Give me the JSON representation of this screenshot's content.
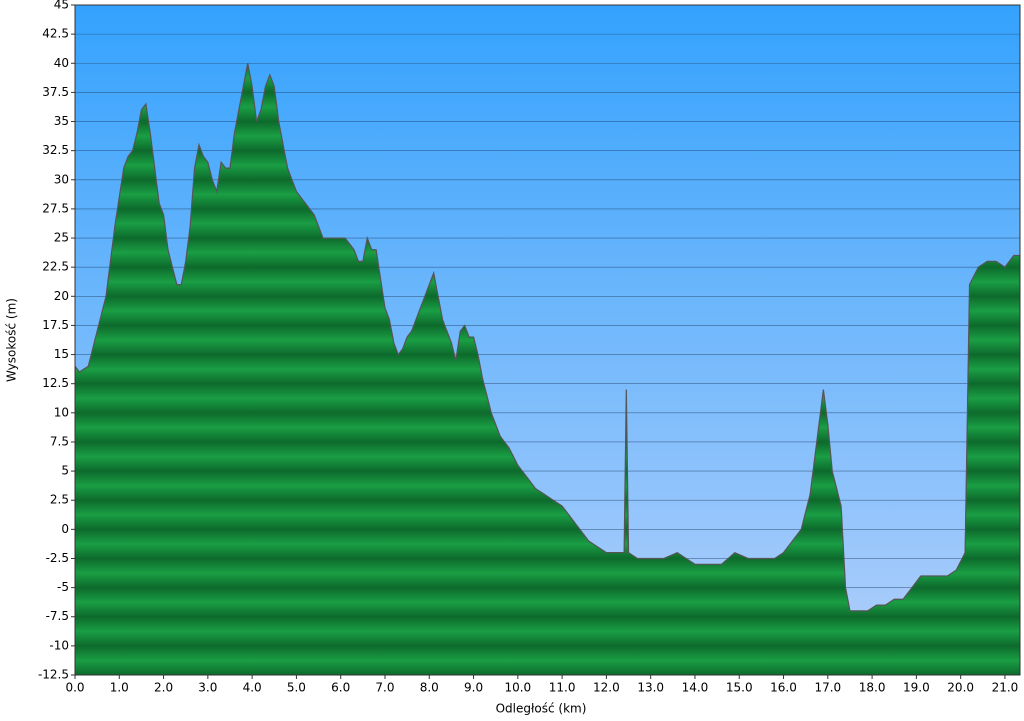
{
  "chart_data": {
    "type": "area",
    "x_label": "Odległość   (km)",
    "y_label": "Wysokość (m)",
    "x": [
      0,
      0.1,
      0.3,
      0.5,
      0.7,
      0.9,
      1.0,
      1.1,
      1.2,
      1.3,
      1.4,
      1.5,
      1.6,
      1.7,
      1.8,
      1.9,
      2.0,
      2.1,
      2.2,
      2.3,
      2.4,
      2.5,
      2.6,
      2.7,
      2.8,
      2.9,
      3.0,
      3.1,
      3.2,
      3.3,
      3.4,
      3.5,
      3.6,
      3.7,
      3.8,
      3.9,
      4.0,
      4.1,
      4.2,
      4.3,
      4.4,
      4.5,
      4.6,
      4.7,
      4.8,
      4.9,
      5.0,
      5.2,
      5.4,
      5.6,
      5.8,
      6.0,
      6.1,
      6.2,
      6.3,
      6.4,
      6.5,
      6.6,
      6.7,
      6.8,
      6.9,
      7.0,
      7.1,
      7.2,
      7.3,
      7.4,
      7.5,
      7.6,
      7.7,
      7.8,
      7.9,
      8.0,
      8.1,
      8.2,
      8.3,
      8.4,
      8.5,
      8.6,
      8.7,
      8.8,
      8.9,
      9.0,
      9.1,
      9.2,
      9.4,
      9.6,
      9.8,
      10.0,
      10.2,
      10.4,
      10.6,
      10.8,
      11.0,
      11.2,
      11.4,
      11.6,
      11.8,
      12.0,
      12.2,
      12.4,
      12.45,
      12.5,
      12.7,
      13.0,
      13.3,
      13.6,
      13.8,
      14.0,
      14.3,
      14.6,
      14.9,
      15.2,
      15.5,
      15.8,
      16.0,
      16.2,
      16.4,
      16.6,
      16.8,
      16.9,
      17.0,
      17.1,
      17.2,
      17.3,
      17.4,
      17.5,
      17.7,
      17.9,
      18.1,
      18.3,
      18.5,
      18.7,
      18.9,
      19.1,
      19.3,
      19.5,
      19.7,
      19.9,
      20.1,
      20.2,
      20.4,
      20.6,
      20.8,
      21.0,
      21.2,
      21.34
    ],
    "values": [
      14,
      13.5,
      14,
      17,
      20,
      26,
      28.5,
      31,
      32,
      32.5,
      34,
      36,
      36.5,
      34,
      31,
      28,
      27,
      24,
      22.5,
      21,
      21,
      23,
      26,
      31,
      33,
      32,
      31.5,
      30,
      29,
      31.5,
      31,
      31,
      34,
      36,
      38,
      40,
      38,
      35,
      36,
      38,
      39,
      38,
      35,
      33,
      31,
      30,
      29,
      28,
      27,
      25,
      25,
      25,
      25,
      24.5,
      24,
      23,
      23,
      25,
      24,
      24,
      21.5,
      19,
      18,
      16,
      15,
      15.5,
      16.5,
      17,
      18,
      19,
      20,
      21,
      22,
      20,
      18,
      17,
      16,
      14.5,
      17,
      17.5,
      16.5,
      16.5,
      15,
      13,
      10,
      8,
      7,
      5.5,
      4.5,
      3.5,
      3,
      2.5,
      2,
      1,
      0,
      -1,
      -1.5,
      -2,
      -2,
      -2,
      12,
      -2,
      -2.5,
      -2.5,
      -2.5,
      -2,
      -2.5,
      -3,
      -3,
      -3,
      -2,
      -2.5,
      -2.5,
      -2.5,
      -2,
      -1,
      0,
      3,
      9,
      12,
      9,
      5,
      3.5,
      2,
      -5,
      -7,
      -7,
      -7,
      -6.5,
      -6.5,
      -6,
      -6,
      -5,
      -4,
      -4,
      -4,
      -4,
      -3.5,
      -2,
      21,
      22.5,
      23,
      23,
      22.5,
      23.5,
      23.5
    ],
    "color": "#1a9e44",
    "xlim": [
      0,
      21.34
    ],
    "ylim": [
      -12.5,
      45
    ],
    "xticks": [
      {
        "value": 0,
        "label": "0.0"
      },
      {
        "value": 1,
        "label": "1.0"
      },
      {
        "value": 2,
        "label": "2.0"
      },
      {
        "value": 3,
        "label": "3.0"
      },
      {
        "value": 4,
        "label": "4.0"
      },
      {
        "value": 5,
        "label": "5.0"
      },
      {
        "value": 6,
        "label": "6.0"
      },
      {
        "value": 7,
        "label": "7.0"
      },
      {
        "value": 8,
        "label": "8.0"
      },
      {
        "value": 9,
        "label": "9.0"
      },
      {
        "value": 10,
        "label": "10.0"
      },
      {
        "value": 11,
        "label": "11.0"
      },
      {
        "value": 12,
        "label": "12.0"
      },
      {
        "value": 13,
        "label": "13.0"
      },
      {
        "value": 14,
        "label": "14.0"
      },
      {
        "value": 15,
        "label": "15.0"
      },
      {
        "value": 16,
        "label": "16.0"
      },
      {
        "value": 17,
        "label": "17.0"
      },
      {
        "value": 18,
        "label": "18.0"
      },
      {
        "value": 19,
        "label": "19.0"
      },
      {
        "value": 20,
        "label": "20.0"
      },
      {
        "value": 21,
        "label": "21.0"
      }
    ],
    "yticks": [
      -12.5,
      -10,
      -7.5,
      -5,
      -2.5,
      0,
      2.5,
      5,
      7.5,
      10,
      12.5,
      15,
      17.5,
      20,
      22.5,
      25,
      27.5,
      30,
      32.5,
      35,
      37.5,
      40,
      42.5,
      45
    ],
    "grid": true
  }
}
